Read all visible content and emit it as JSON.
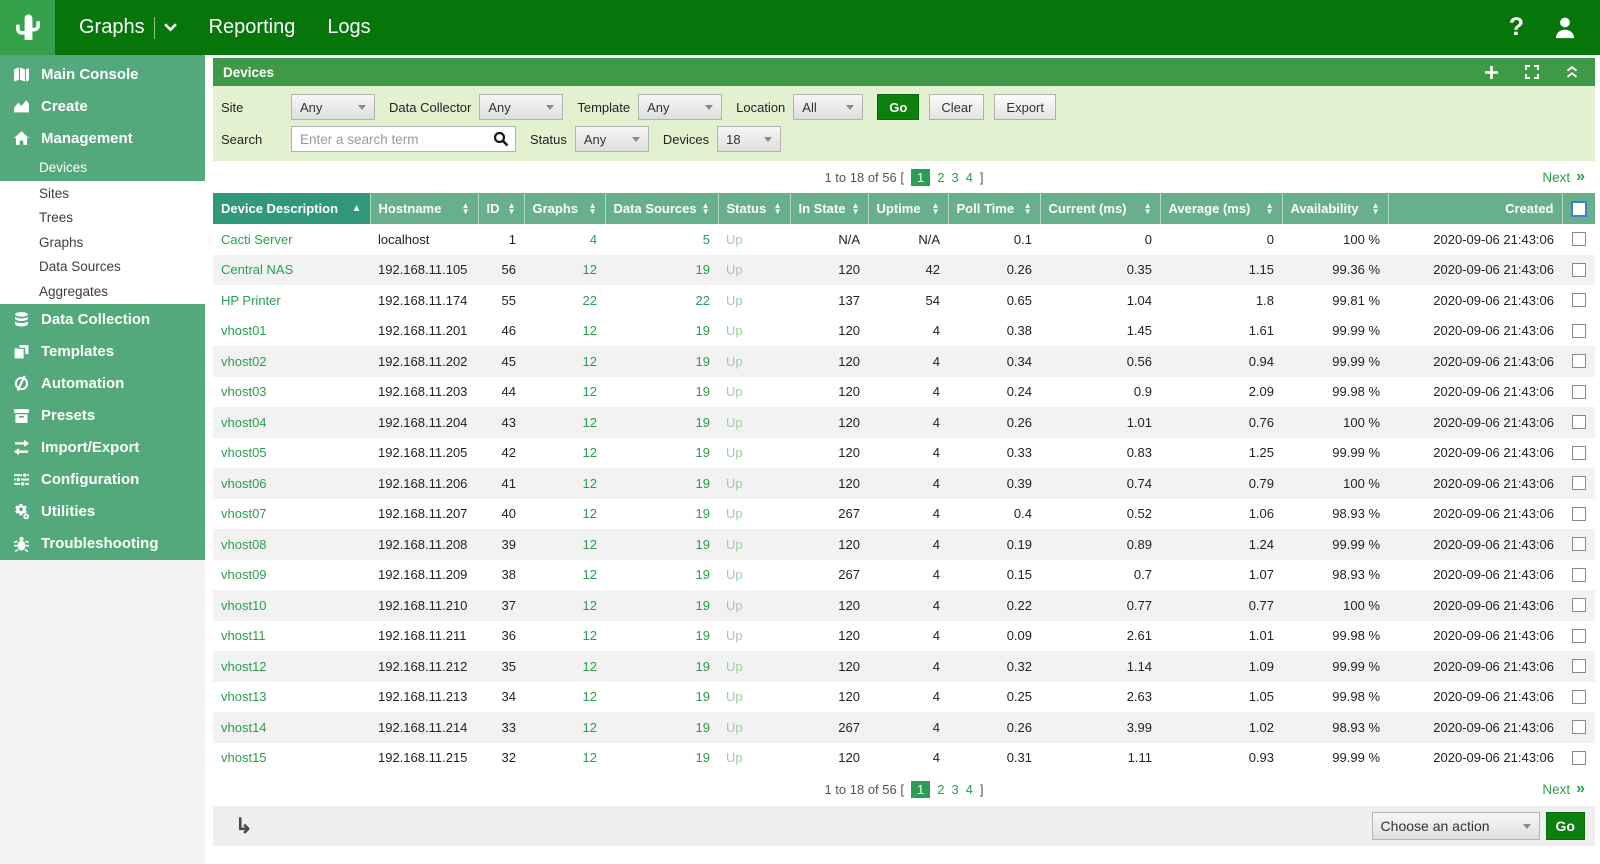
{
  "topbar": {
    "menu": [
      {
        "label": "Graphs"
      },
      {
        "label": "Reporting"
      },
      {
        "label": "Logs"
      }
    ],
    "help_label": "?"
  },
  "sidebar": {
    "groups": [
      {
        "style": "green",
        "items": [
          {
            "label": "Main Console",
            "icon": "map-icon",
            "level": "top"
          },
          {
            "label": "Create",
            "icon": "chart-area-icon",
            "level": "top"
          },
          {
            "label": "Management",
            "icon": "home-icon",
            "level": "top"
          },
          {
            "label": "Devices",
            "level": "sub",
            "selected": true
          }
        ]
      },
      {
        "style": "white",
        "items": [
          {
            "label": "Sites",
            "level": "sub"
          },
          {
            "label": "Trees",
            "level": "sub"
          },
          {
            "label": "Graphs",
            "level": "sub"
          },
          {
            "label": "Data Sources",
            "level": "sub"
          },
          {
            "label": "Aggregates",
            "level": "sub"
          }
        ]
      },
      {
        "style": "green",
        "items": [
          {
            "label": "Data Collection",
            "icon": "database-icon",
            "level": "top"
          },
          {
            "label": "Templates",
            "icon": "templates-icon",
            "level": "top"
          },
          {
            "label": "Automation",
            "icon": "automation-icon",
            "level": "top"
          },
          {
            "label": "Presets",
            "icon": "presets-icon",
            "level": "top"
          },
          {
            "label": "Import/Export",
            "icon": "import-export-icon",
            "level": "top"
          },
          {
            "label": "Configuration",
            "icon": "sliders-icon",
            "level": "top"
          },
          {
            "label": "Utilities",
            "icon": "gears-icon",
            "level": "top"
          },
          {
            "label": "Troubleshooting",
            "icon": "bug-icon",
            "level": "top"
          }
        ]
      }
    ]
  },
  "panel": {
    "title": "Devices"
  },
  "filters": {
    "site_label": "Site",
    "site_value": "Any",
    "collector_label": "Data Collector",
    "collector_value": "Any",
    "template_label": "Template",
    "template_value": "Any",
    "location_label": "Location",
    "location_value": "All",
    "go_label": "Go",
    "clear_label": "Clear",
    "export_label": "Export",
    "search_label": "Search",
    "search_placeholder": "Enter a search term",
    "status_label": "Status",
    "status_value": "Any",
    "devices_label": "Devices",
    "devices_value": "18"
  },
  "pagination": {
    "summary": "1 to 18 of 56",
    "bracket_open": "[",
    "bracket_close": "]",
    "pages": [
      "1",
      "2",
      "3",
      "4"
    ],
    "current": "1",
    "next_label": "Next",
    "next_glyph": "»"
  },
  "table": {
    "columns": [
      {
        "key": "description",
        "label": "Device Description",
        "align": "left",
        "sorted": "asc"
      },
      {
        "key": "hostname",
        "label": "Hostname",
        "align": "left",
        "sortable": true
      },
      {
        "key": "id",
        "label": "ID",
        "align": "right",
        "sortable": true
      },
      {
        "key": "graphs",
        "label": "Graphs",
        "align": "right",
        "sortable": true
      },
      {
        "key": "data_sources",
        "label": "Data Sources",
        "align": "right",
        "sortable": true
      },
      {
        "key": "status",
        "label": "Status",
        "align": "left",
        "sortable": true
      },
      {
        "key": "in_state",
        "label": "In State",
        "align": "right",
        "sortable": true
      },
      {
        "key": "uptime",
        "label": "Uptime",
        "align": "right",
        "sortable": true
      },
      {
        "key": "poll_time",
        "label": "Poll Time",
        "align": "right",
        "sortable": true
      },
      {
        "key": "current",
        "label": "Current (ms)",
        "align": "right",
        "sortable": true
      },
      {
        "key": "average",
        "label": "Average (ms)",
        "align": "right",
        "sortable": true
      },
      {
        "key": "availability",
        "label": "Availability",
        "align": "right",
        "sortable": true
      },
      {
        "key": "created",
        "label": "Created",
        "align": "right",
        "sortable": false
      }
    ],
    "rows": [
      {
        "description": "Cacti Server",
        "hostname": "localhost",
        "id": "1",
        "graphs": "4",
        "data_sources": "5",
        "status": "Up",
        "in_state": "N/A",
        "uptime": "N/A",
        "poll_time": "0.1",
        "current": "0",
        "average": "0",
        "availability": "100 %",
        "created": "2020-09-06 21:43:06",
        "shaded": false
      },
      {
        "description": "Central NAS",
        "hostname": "192.168.11.105",
        "id": "56",
        "graphs": "12",
        "data_sources": "19",
        "status": "Up",
        "in_state": "120",
        "uptime": "42",
        "poll_time": "0.26",
        "current": "0.35",
        "average": "1.15",
        "availability": "99.36 %",
        "created": "2020-09-06 21:43:06",
        "shaded": true
      },
      {
        "description": "HP Printer",
        "hostname": "192.168.11.174",
        "id": "55",
        "graphs": "22",
        "data_sources": "22",
        "status": "Up",
        "in_state": "137",
        "uptime": "54",
        "poll_time": "0.65",
        "current": "1.04",
        "average": "1.8",
        "availability": "99.81 %",
        "created": "2020-09-06 21:43:06",
        "shaded": false
      },
      {
        "description": "vhost01",
        "hostname": "192.168.11.201",
        "id": "46",
        "graphs": "12",
        "data_sources": "19",
        "status": "Up",
        "in_state": "120",
        "uptime": "4",
        "poll_time": "0.38",
        "current": "1.45",
        "average": "1.61",
        "availability": "99.99 %",
        "created": "2020-09-06 21:43:06",
        "shaded": false
      },
      {
        "description": "vhost02",
        "hostname": "192.168.11.202",
        "id": "45",
        "graphs": "12",
        "data_sources": "19",
        "status": "Up",
        "in_state": "120",
        "uptime": "4",
        "poll_time": "0.34",
        "current": "0.56",
        "average": "0.94",
        "availability": "99.99 %",
        "created": "2020-09-06 21:43:06",
        "shaded": true
      },
      {
        "description": "vhost03",
        "hostname": "192.168.11.203",
        "id": "44",
        "graphs": "12",
        "data_sources": "19",
        "status": "Up",
        "in_state": "120",
        "uptime": "4",
        "poll_time": "0.24",
        "current": "0.9",
        "average": "2.09",
        "availability": "99.98 %",
        "created": "2020-09-06 21:43:06",
        "shaded": false
      },
      {
        "description": "vhost04",
        "hostname": "192.168.11.204",
        "id": "43",
        "graphs": "12",
        "data_sources": "19",
        "status": "Up",
        "in_state": "120",
        "uptime": "4",
        "poll_time": "0.26",
        "current": "1.01",
        "average": "0.76",
        "availability": "100 %",
        "created": "2020-09-06 21:43:06",
        "shaded": true
      },
      {
        "description": "vhost05",
        "hostname": "192.168.11.205",
        "id": "42",
        "graphs": "12",
        "data_sources": "19",
        "status": "Up",
        "in_state": "120",
        "uptime": "4",
        "poll_time": "0.33",
        "current": "0.83",
        "average": "1.25",
        "availability": "99.99 %",
        "created": "2020-09-06 21:43:06",
        "shaded": false
      },
      {
        "description": "vhost06",
        "hostname": "192.168.11.206",
        "id": "41",
        "graphs": "12",
        "data_sources": "19",
        "status": "Up",
        "in_state": "120",
        "uptime": "4",
        "poll_time": "0.39",
        "current": "0.74",
        "average": "0.79",
        "availability": "100 %",
        "created": "2020-09-06 21:43:06",
        "shaded": true
      },
      {
        "description": "vhost07",
        "hostname": "192.168.11.207",
        "id": "40",
        "graphs": "12",
        "data_sources": "19",
        "status": "Up",
        "in_state": "267",
        "uptime": "4",
        "poll_time": "0.4",
        "current": "0.52",
        "average": "1.06",
        "availability": "98.93 %",
        "created": "2020-09-06 21:43:06",
        "shaded": false
      },
      {
        "description": "vhost08",
        "hostname": "192.168.11.208",
        "id": "39",
        "graphs": "12",
        "data_sources": "19",
        "status": "Up",
        "in_state": "120",
        "uptime": "4",
        "poll_time": "0.19",
        "current": "0.89",
        "average": "1.24",
        "availability": "99.99 %",
        "created": "2020-09-06 21:43:06",
        "shaded": true
      },
      {
        "description": "vhost09",
        "hostname": "192.168.11.209",
        "id": "38",
        "graphs": "12",
        "data_sources": "19",
        "status": "Up",
        "in_state": "267",
        "uptime": "4",
        "poll_time": "0.15",
        "current": "0.7",
        "average": "1.07",
        "availability": "98.93 %",
        "created": "2020-09-06 21:43:06",
        "shaded": false
      },
      {
        "description": "vhost10",
        "hostname": "192.168.11.210",
        "id": "37",
        "graphs": "12",
        "data_sources": "19",
        "status": "Up",
        "in_state": "120",
        "uptime": "4",
        "poll_time": "0.22",
        "current": "0.77",
        "average": "0.77",
        "availability": "100 %",
        "created": "2020-09-06 21:43:06",
        "shaded": true
      },
      {
        "description": "vhost11",
        "hostname": "192.168.11.211",
        "id": "36",
        "graphs": "12",
        "data_sources": "19",
        "status": "Up",
        "in_state": "120",
        "uptime": "4",
        "poll_time": "0.09",
        "current": "2.61",
        "average": "1.01",
        "availability": "99.98 %",
        "created": "2020-09-06 21:43:06",
        "shaded": false
      },
      {
        "description": "vhost12",
        "hostname": "192.168.11.212",
        "id": "35",
        "graphs": "12",
        "data_sources": "19",
        "status": "Up",
        "in_state": "120",
        "uptime": "4",
        "poll_time": "0.32",
        "current": "1.14",
        "average": "1.09",
        "availability": "99.99 %",
        "created": "2020-09-06 21:43:06",
        "shaded": true
      },
      {
        "description": "vhost13",
        "hostname": "192.168.11.213",
        "id": "34",
        "graphs": "12",
        "data_sources": "19",
        "status": "Up",
        "in_state": "120",
        "uptime": "4",
        "poll_time": "0.25",
        "current": "2.63",
        "average": "1.05",
        "availability": "99.98 %",
        "created": "2020-09-06 21:43:06",
        "shaded": false
      },
      {
        "description": "vhost14",
        "hostname": "192.168.11.214",
        "id": "33",
        "graphs": "12",
        "data_sources": "19",
        "status": "Up",
        "in_state": "267",
        "uptime": "4",
        "poll_time": "0.26",
        "current": "3.99",
        "average": "1.02",
        "availability": "98.93 %",
        "created": "2020-09-06 21:43:06",
        "shaded": true
      },
      {
        "description": "vhost15",
        "hostname": "192.168.11.215",
        "id": "32",
        "graphs": "12",
        "data_sources": "19",
        "status": "Up",
        "in_state": "120",
        "uptime": "4",
        "poll_time": "0.31",
        "current": "1.11",
        "average": "0.93",
        "availability": "99.99 %",
        "created": "2020-09-06 21:43:06",
        "shaded": false
      }
    ]
  },
  "actionbar": {
    "select_value": "Choose an action",
    "go_label": "Go"
  },
  "theme": {
    "topbar_green": "#06750a",
    "logo_green": "#35a14b",
    "sidebar_green": "#54a97c",
    "panel_header_green": "#3f9a48",
    "filter_bg": "#e3f1d1",
    "table_header_green": "#67b08b",
    "sorted_header_green": "#31997a",
    "link_green": "#2c9d4f",
    "status_up_green": "#9dcf9d",
    "button_green": "#0d800d",
    "stripe_gray": "#f2f2f2",
    "pagination_current_green": "#2c9d55"
  }
}
